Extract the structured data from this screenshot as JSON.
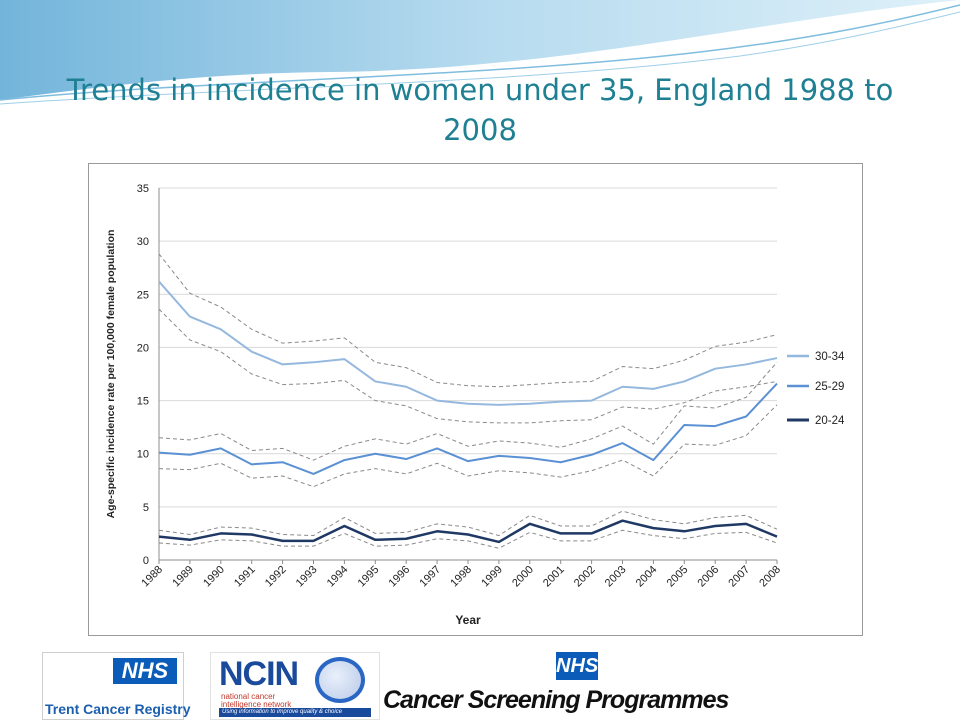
{
  "slide": {
    "title": "Trends in incidence in women under 35, England 1988 to 2008"
  },
  "theme": {
    "title_color": "#1f7f93",
    "swoosh_color": "#6fb3d8"
  },
  "chart_data": {
    "type": "line",
    "title": "",
    "xlabel": "Year",
    "ylabel": "Age-specific incidence  rate per 100,000 female population",
    "ylim": [
      0,
      35
    ],
    "yticks": [
      0,
      5,
      10,
      15,
      20,
      25,
      30,
      35
    ],
    "grid": true,
    "legend": "right",
    "x": [
      "1988",
      "1989",
      "1990",
      "1991",
      "1992",
      "1993",
      "1994",
      "1995",
      "1996",
      "1997",
      "1998",
      "1999",
      "2000",
      "2001",
      "2002",
      "2003",
      "2004",
      "2005",
      "2006",
      "2007",
      "2008"
    ],
    "series": [
      {
        "name": "30-34",
        "color": "#95b8de",
        "width": 2,
        "values": [
          26.2,
          22.9,
          21.7,
          19.6,
          18.4,
          18.6,
          18.9,
          16.8,
          16.3,
          15.0,
          14.7,
          14.6,
          14.7,
          14.9,
          15.0,
          16.3,
          16.1,
          16.8,
          18.0,
          18.4,
          19.0
        ],
        "ci_upper": [
          28.8,
          25.1,
          23.8,
          21.7,
          20.4,
          20.6,
          20.9,
          18.6,
          18.1,
          16.7,
          16.4,
          16.3,
          16.5,
          16.7,
          16.8,
          18.2,
          18.0,
          18.8,
          20.1,
          20.5,
          21.2
        ],
        "ci_lower": [
          23.6,
          20.7,
          19.6,
          17.5,
          16.5,
          16.6,
          16.9,
          15.0,
          14.5,
          13.3,
          13.0,
          12.9,
          12.9,
          13.1,
          13.2,
          14.4,
          14.2,
          14.8,
          15.9,
          16.3,
          16.8
        ]
      },
      {
        "name": "25-29",
        "color": "#5b91d4",
        "width": 2,
        "values": [
          10.1,
          9.9,
          10.5,
          9.0,
          9.2,
          8.1,
          9.4,
          10.0,
          9.5,
          10.5,
          9.3,
          9.8,
          9.6,
          9.2,
          9.9,
          11.0,
          9.4,
          12.7,
          12.6,
          13.5,
          16.6
        ],
        "ci_upper": [
          11.5,
          11.3,
          11.9,
          10.3,
          10.5,
          9.4,
          10.7,
          11.4,
          10.9,
          11.9,
          10.7,
          11.2,
          11.0,
          10.6,
          11.4,
          12.6,
          10.9,
          14.5,
          14.3,
          15.3,
          18.6
        ],
        "ci_lower": [
          8.6,
          8.5,
          9.1,
          7.7,
          7.9,
          6.9,
          8.1,
          8.6,
          8.1,
          9.1,
          7.9,
          8.4,
          8.2,
          7.8,
          8.4,
          9.4,
          7.9,
          10.9,
          10.8,
          11.7,
          14.6
        ]
      },
      {
        "name": "20-24",
        "color": "#1f3864",
        "width": 2.5,
        "values": [
          2.2,
          1.9,
          2.5,
          2.4,
          1.8,
          1.8,
          3.2,
          1.9,
          2.0,
          2.7,
          2.4,
          1.7,
          3.4,
          2.5,
          2.5,
          3.7,
          3.0,
          2.7,
          3.2,
          3.4,
          2.2
        ],
        "ci_upper": [
          2.8,
          2.4,
          3.1,
          3.0,
          2.4,
          2.3,
          4.0,
          2.5,
          2.6,
          3.4,
          3.1,
          2.3,
          4.2,
          3.2,
          3.2,
          4.6,
          3.8,
          3.4,
          4.0,
          4.2,
          2.9
        ],
        "ci_lower": [
          1.6,
          1.4,
          1.9,
          1.8,
          1.3,
          1.3,
          2.5,
          1.3,
          1.4,
          2.0,
          1.8,
          1.1,
          2.6,
          1.8,
          1.8,
          2.8,
          2.3,
          2.0,
          2.5,
          2.6,
          1.6
        ]
      }
    ]
  },
  "logos": {
    "trent_badge": "NHS",
    "trent_name": "Trent Cancer Registry",
    "ncin_word": "NCIN",
    "ncin_sub1": "national cancer",
    "ncin_sub2": "intelligence network",
    "ncin_tagline": "Using information to improve quality & choice",
    "csp_badge": "NHS",
    "csp_name": "Cancer Screening Programmes"
  }
}
